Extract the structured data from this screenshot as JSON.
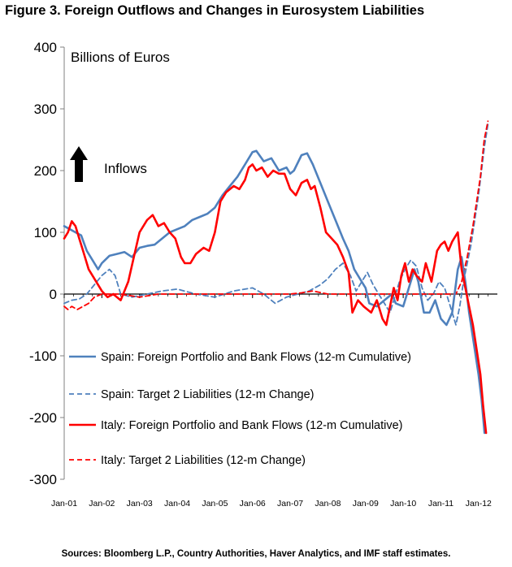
{
  "title": "Figure 3. Foreign Outflows and Changes in Eurosystem Liabilities",
  "source": "Sources: Bloomberg L.P., Country Authorities, Haver Analytics, and IMF staff estimates.",
  "chart_data": {
    "type": "line",
    "title": "Figure 3. Foreign Outflows and Changes in Eurosystem Liabilities",
    "ylabel": "Billions of Euros",
    "xlabel": "",
    "ylim": [
      -300,
      400
    ],
    "yticks": [
      -300,
      -200,
      -100,
      0,
      100,
      200,
      300,
      400
    ],
    "xlim": [
      2001.0,
      2012.5
    ],
    "xticks": [
      {
        "label": "Jan-01",
        "x": 2001
      },
      {
        "label": "Jan-02",
        "x": 2002
      },
      {
        "label": "Jan-03",
        "x": 2003
      },
      {
        "label": "Jan-04",
        "x": 2004
      },
      {
        "label": "Jan-05",
        "x": 2005
      },
      {
        "label": "Jan-06",
        "x": 2006
      },
      {
        "label": "Jan-07",
        "x": 2007
      },
      {
        "label": "Jan-08",
        "x": 2008
      },
      {
        "label": "Jan-09",
        "x": 2009
      },
      {
        "label": "Jan-10",
        "x": 2010
      },
      {
        "label": "Jan-11",
        "x": 2011
      },
      {
        "label": "Jan-12",
        "x": 2012
      }
    ],
    "grid": false,
    "legend_position": "bottom-left",
    "annotation": {
      "text": "Inflows",
      "x": 2002.05,
      "y": 200
    },
    "series": [
      {
        "name": "Spain: Foreign Portfolio and Bank Flows (12-m Cumulative)",
        "color": "#4f81bd",
        "dash": false,
        "points": [
          [
            2001.0,
            110
          ],
          [
            2001.15,
            105
          ],
          [
            2001.3,
            100
          ],
          [
            2001.45,
            95
          ],
          [
            2001.6,
            70
          ],
          [
            2001.75,
            55
          ],
          [
            2001.9,
            40
          ],
          [
            2002.0,
            50
          ],
          [
            2002.2,
            62
          ],
          [
            2002.4,
            65
          ],
          [
            2002.6,
            68
          ],
          [
            2002.8,
            60
          ],
          [
            2003.0,
            75
          ],
          [
            2003.2,
            78
          ],
          [
            2003.4,
            80
          ],
          [
            2003.6,
            90
          ],
          [
            2003.8,
            100
          ],
          [
            2004.0,
            105
          ],
          [
            2004.2,
            110
          ],
          [
            2004.4,
            120
          ],
          [
            2004.6,
            125
          ],
          [
            2004.8,
            130
          ],
          [
            2005.0,
            140
          ],
          [
            2005.2,
            160
          ],
          [
            2005.4,
            175
          ],
          [
            2005.6,
            190
          ],
          [
            2005.8,
            210
          ],
          [
            2006.0,
            230
          ],
          [
            2006.1,
            232
          ],
          [
            2006.3,
            215
          ],
          [
            2006.5,
            220
          ],
          [
            2006.7,
            200
          ],
          [
            2006.9,
            205
          ],
          [
            2007.0,
            195
          ],
          [
            2007.1,
            200
          ],
          [
            2007.3,
            225
          ],
          [
            2007.45,
            228
          ],
          [
            2007.6,
            210
          ],
          [
            2007.8,
            180
          ],
          [
            2008.0,
            150
          ],
          [
            2008.2,
            120
          ],
          [
            2008.4,
            90
          ],
          [
            2008.55,
            70
          ],
          [
            2008.7,
            40
          ],
          [
            2008.85,
            25
          ],
          [
            2009.0,
            10
          ],
          [
            2009.1,
            -15
          ],
          [
            2009.3,
            -20
          ],
          [
            2009.5,
            -10
          ],
          [
            2009.7,
            0
          ],
          [
            2009.8,
            -15
          ],
          [
            2010.0,
            -20
          ],
          [
            2010.15,
            10
          ],
          [
            2010.3,
            40
          ],
          [
            2010.4,
            20
          ],
          [
            2010.55,
            -30
          ],
          [
            2010.7,
            -30
          ],
          [
            2010.85,
            -10
          ],
          [
            2011.0,
            -40
          ],
          [
            2011.15,
            -50
          ],
          [
            2011.3,
            -30
          ],
          [
            2011.45,
            40
          ],
          [
            2011.55,
            60
          ],
          [
            2011.65,
            20
          ],
          [
            2011.75,
            -30
          ],
          [
            2011.9,
            -90
          ],
          [
            2012.0,
            -130
          ],
          [
            2012.08,
            -170
          ],
          [
            2012.16,
            -225
          ]
        ]
      },
      {
        "name": "Spain: Target 2 Liabilities (12-m Change)",
        "color": "#4f81bd",
        "dash": true,
        "points": [
          [
            2001.0,
            -15
          ],
          [
            2001.2,
            -10
          ],
          [
            2001.4,
            -8
          ],
          [
            2001.6,
            0
          ],
          [
            2001.8,
            15
          ],
          [
            2002.0,
            30
          ],
          [
            2002.2,
            40
          ],
          [
            2002.35,
            30
          ],
          [
            2002.5,
            0
          ],
          [
            2002.8,
            -5
          ],
          [
            2003.2,
            0
          ],
          [
            2003.6,
            5
          ],
          [
            2004.0,
            8
          ],
          [
            2004.5,
            0
          ],
          [
            2005.0,
            -5
          ],
          [
            2005.5,
            5
          ],
          [
            2006.0,
            10
          ],
          [
            2006.3,
            0
          ],
          [
            2006.6,
            -15
          ],
          [
            2006.9,
            -5
          ],
          [
            2007.2,
            0
          ],
          [
            2007.5,
            5
          ],
          [
            2007.8,
            15
          ],
          [
            2008.0,
            25
          ],
          [
            2008.2,
            40
          ],
          [
            2008.4,
            50
          ],
          [
            2008.6,
            30
          ],
          [
            2008.75,
            5
          ],
          [
            2008.9,
            20
          ],
          [
            2009.05,
            35
          ],
          [
            2009.2,
            15
          ],
          [
            2009.35,
            0
          ],
          [
            2009.5,
            -15
          ],
          [
            2009.65,
            -30
          ],
          [
            2009.75,
            -10
          ],
          [
            2009.9,
            20
          ],
          [
            2010.05,
            40
          ],
          [
            2010.2,
            55
          ],
          [
            2010.35,
            45
          ],
          [
            2010.5,
            10
          ],
          [
            2010.65,
            -10
          ],
          [
            2010.8,
            0
          ],
          [
            2010.95,
            20
          ],
          [
            2011.1,
            10
          ],
          [
            2011.25,
            -20
          ],
          [
            2011.4,
            -50
          ],
          [
            2011.5,
            -20
          ],
          [
            2011.6,
            20
          ],
          [
            2011.7,
            50
          ],
          [
            2011.8,
            80
          ],
          [
            2011.9,
            120
          ],
          [
            2012.0,
            160
          ],
          [
            2012.08,
            200
          ],
          [
            2012.16,
            240
          ],
          [
            2012.25,
            275
          ]
        ]
      },
      {
        "name": "Italy: Foreign Portfolio and Bank Flows (12-m Cumulative)",
        "color": "#ff0000",
        "dash": false,
        "points": [
          [
            2001.0,
            90
          ],
          [
            2001.1,
            100
          ],
          [
            2001.2,
            118
          ],
          [
            2001.3,
            110
          ],
          [
            2001.4,
            90
          ],
          [
            2001.5,
            70
          ],
          [
            2001.65,
            40
          ],
          [
            2001.85,
            20
          ],
          [
            2002.0,
            5
          ],
          [
            2002.15,
            -5
          ],
          [
            2002.3,
            0
          ],
          [
            2002.5,
            -10
          ],
          [
            2002.7,
            20
          ],
          [
            2002.85,
            60
          ],
          [
            2003.0,
            100
          ],
          [
            2003.2,
            120
          ],
          [
            2003.35,
            128
          ],
          [
            2003.5,
            110
          ],
          [
            2003.65,
            115
          ],
          [
            2003.8,
            100
          ],
          [
            2003.95,
            90
          ],
          [
            2004.1,
            60
          ],
          [
            2004.2,
            50
          ],
          [
            2004.35,
            50
          ],
          [
            2004.5,
            65
          ],
          [
            2004.7,
            75
          ],
          [
            2004.85,
            70
          ],
          [
            2005.0,
            100
          ],
          [
            2005.15,
            150
          ],
          [
            2005.3,
            165
          ],
          [
            2005.5,
            175
          ],
          [
            2005.65,
            170
          ],
          [
            2005.8,
            185
          ],
          [
            2005.9,
            205
          ],
          [
            2006.0,
            210
          ],
          [
            2006.1,
            200
          ],
          [
            2006.25,
            205
          ],
          [
            2006.4,
            190
          ],
          [
            2006.55,
            200
          ],
          [
            2006.7,
            195
          ],
          [
            2006.85,
            195
          ],
          [
            2007.0,
            170
          ],
          [
            2007.15,
            160
          ],
          [
            2007.3,
            180
          ],
          [
            2007.45,
            185
          ],
          [
            2007.55,
            170
          ],
          [
            2007.65,
            175
          ],
          [
            2007.8,
            140
          ],
          [
            2007.95,
            100
          ],
          [
            2008.1,
            90
          ],
          [
            2008.25,
            80
          ],
          [
            2008.4,
            60
          ],
          [
            2008.55,
            35
          ],
          [
            2008.65,
            -30
          ],
          [
            2008.8,
            -10
          ],
          [
            2008.95,
            -20
          ],
          [
            2009.05,
            -25
          ],
          [
            2009.15,
            -30
          ],
          [
            2009.3,
            -10
          ],
          [
            2009.45,
            -40
          ],
          [
            2009.55,
            -50
          ],
          [
            2009.65,
            -20
          ],
          [
            2009.75,
            10
          ],
          [
            2009.85,
            -10
          ],
          [
            2009.95,
            30
          ],
          [
            2010.05,
            50
          ],
          [
            2010.15,
            20
          ],
          [
            2010.25,
            40
          ],
          [
            2010.35,
            30
          ],
          [
            2010.5,
            20
          ],
          [
            2010.6,
            50
          ],
          [
            2010.75,
            20
          ],
          [
            2010.9,
            70
          ],
          [
            2011.0,
            80
          ],
          [
            2011.1,
            85
          ],
          [
            2011.2,
            70
          ],
          [
            2011.3,
            85
          ],
          [
            2011.45,
            100
          ],
          [
            2011.55,
            40
          ],
          [
            2011.65,
            10
          ],
          [
            2011.75,
            -20
          ],
          [
            2011.85,
            -50
          ],
          [
            2011.95,
            -90
          ],
          [
            2012.05,
            -130
          ],
          [
            2012.12,
            -180
          ],
          [
            2012.2,
            -225
          ]
        ]
      },
      {
        "name": "Italy: Target 2 Liabilities (12-m Change)",
        "color": "#ff0000",
        "dash": true,
        "points": [
          [
            2001.0,
            -20
          ],
          [
            2001.1,
            -25
          ],
          [
            2001.2,
            -20
          ],
          [
            2001.35,
            -25
          ],
          [
            2001.5,
            -20
          ],
          [
            2001.65,
            -15
          ],
          [
            2001.8,
            -5
          ],
          [
            2002.0,
            0
          ],
          [
            2002.5,
            0
          ],
          [
            2003.0,
            -5
          ],
          [
            2003.5,
            0
          ],
          [
            2004.0,
            0
          ],
          [
            2005.0,
            0
          ],
          [
            2006.0,
            0
          ],
          [
            2007.0,
            0
          ],
          [
            2007.3,
            2
          ],
          [
            2007.6,
            5
          ],
          [
            2008.0,
            0
          ],
          [
            2009.0,
            0
          ],
          [
            2010.0,
            0
          ],
          [
            2011.0,
            0
          ],
          [
            2011.4,
            0
          ],
          [
            2011.55,
            20
          ],
          [
            2011.7,
            60
          ],
          [
            2011.85,
            110
          ],
          [
            2011.95,
            150
          ],
          [
            2012.05,
            190
          ],
          [
            2012.15,
            250
          ],
          [
            2012.25,
            280
          ]
        ]
      }
    ]
  }
}
